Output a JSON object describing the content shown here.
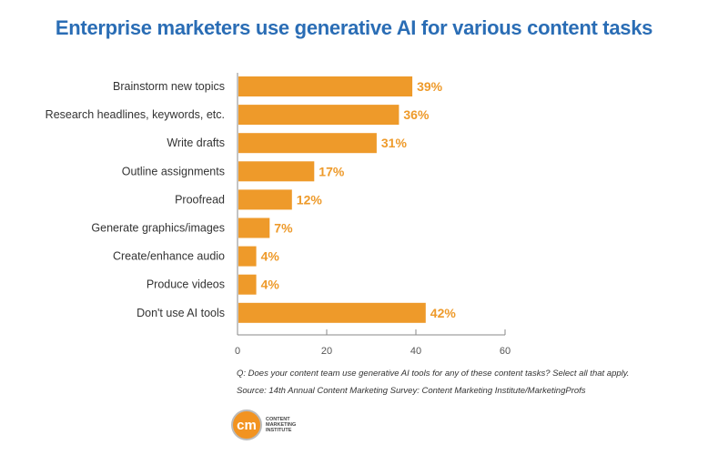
{
  "chart_data": {
    "type": "bar",
    "orientation": "horizontal",
    "title": "Enterprise marketers use generative AI for various content tasks",
    "categories": [
      "Brainstorm new topics",
      "Research headlines, keywords, etc.",
      "Write drafts",
      "Outline assignments",
      "Proofread",
      "Generate graphics/images",
      "Create/enhance audio",
      "Produce videos",
      "Don't use AI tools"
    ],
    "values": [
      39,
      36,
      31,
      17,
      12,
      7,
      4,
      4,
      42
    ],
    "value_labels": [
      "39%",
      "36%",
      "31%",
      "17%",
      "12%",
      "7%",
      "4%",
      "4%",
      "42%"
    ],
    "xlim": [
      0,
      60
    ],
    "xticks": [
      "0",
      "20",
      "40",
      "60"
    ],
    "grid": false,
    "bar_color": "#ee9a2a",
    "title_color": "#2a6db5"
  },
  "notes": {
    "question": "Q: Does your content team use generative AI tools for any of these content tasks? Select all that apply.",
    "source": "Source: 14th Annual Content Marketing Survey: Content Marketing Institute/MarketingProfs"
  },
  "logo": {
    "mark": "cm",
    "text": "CONTENT MARKETING INSTITUTE"
  }
}
